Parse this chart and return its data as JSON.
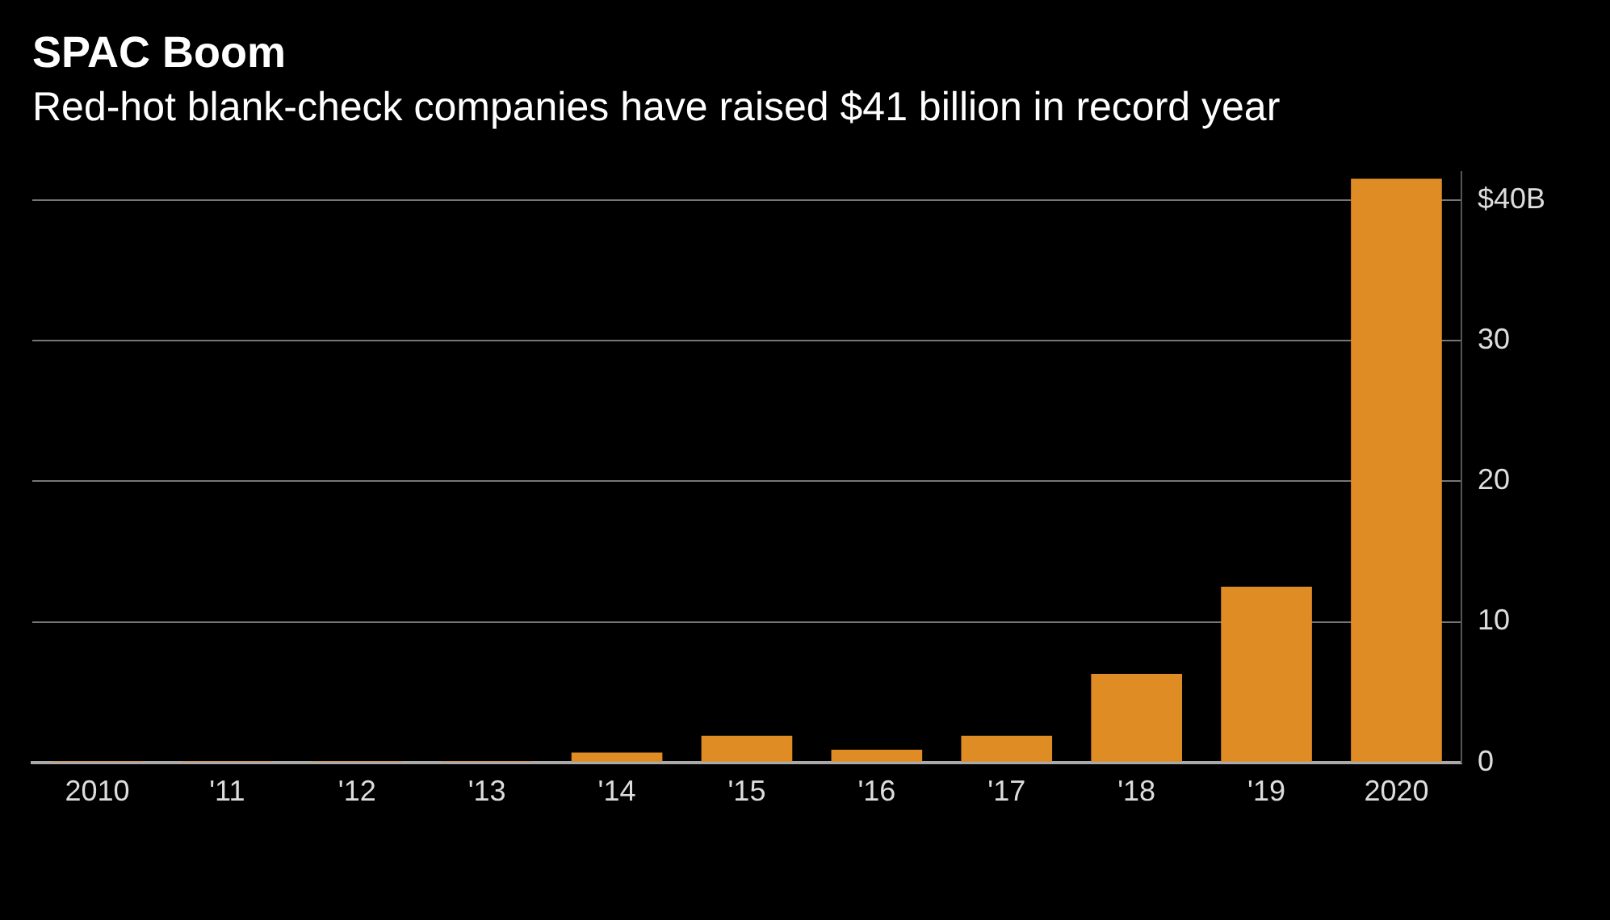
{
  "chart_data": {
    "type": "bar",
    "title": "SPAC Boom",
    "subtitle": "Red-hot blank-check companies have raised $41 billion in record year",
    "categories": [
      "2010",
      "'11",
      "'12",
      "'13",
      "'14",
      "'15",
      "'16",
      "'17",
      "'18",
      "'19",
      "2020"
    ],
    "values": [
      0.1,
      0.1,
      0.1,
      0.1,
      0.7,
      1.9,
      0.9,
      1.9,
      6.3,
      12.5,
      41.5
    ],
    "color": "#e08c25",
    "ylim": [
      0,
      42
    ],
    "yticks": [
      0,
      10,
      20,
      30,
      {
        "value": 40,
        "label": "$40B"
      }
    ],
    "grid": "y"
  }
}
